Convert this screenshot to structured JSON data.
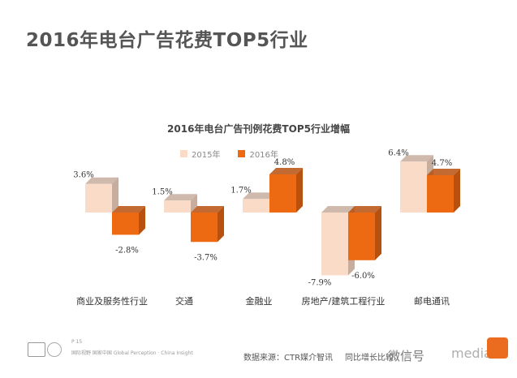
{
  "page": {
    "title": "2016年电台广告花费TOP5行业"
  },
  "chart_data": {
    "type": "bar",
    "title": "2016年电台广告刊例花费TOP5行业增幅",
    "categories": [
      "商业及服务性行业",
      "交通",
      "金融业",
      "房地产/建筑工程行业",
      "邮电通讯"
    ],
    "series": [
      {
        "name": "2015年",
        "values": [
          3.6,
          1.5,
          1.7,
          -7.9,
          6.4
        ],
        "labels": [
          "3.6%",
          "1.5%",
          "1.7%",
          "-7.9%",
          "6.4%"
        ]
      },
      {
        "name": "2016年",
        "values": [
          -2.8,
          -3.7,
          4.8,
          -6.0,
          4.7
        ],
        "labels": [
          "-2.8%",
          "-3.7%",
          "4.8%",
          "-6.0%",
          "4.7%"
        ]
      }
    ],
    "colors": {
      "2015": "#fadbc8",
      "2016": "#ee6a12",
      "side2015": "#c7ad9e",
      "side2016": "#b8500e"
    },
    "legend_position": "top-center",
    "grid": false
  },
  "footer": {
    "page_number": "P 15",
    "brand": "国际视野  国家中国  Global Perception · China Insight",
    "source": "数据来源：CTR媒介智讯",
    "yoy": "同比增长比较",
    "wechat": "微信号",
    "watermark": "mediam"
  }
}
